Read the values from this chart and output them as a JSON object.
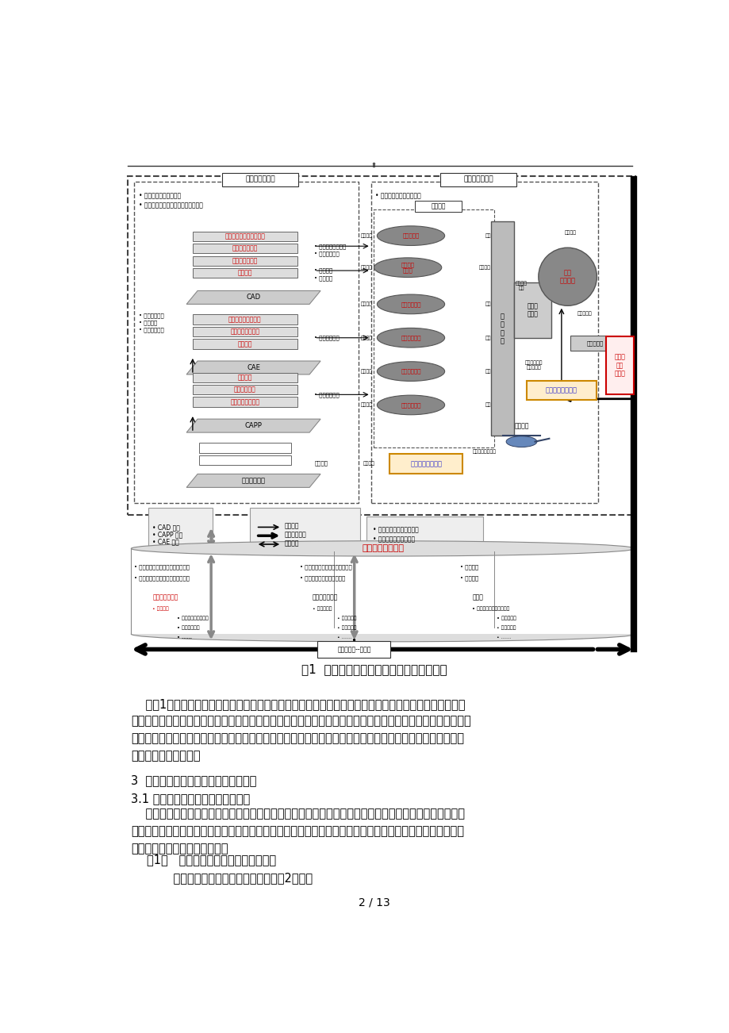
{
  "page_width": 9.2,
  "page_height": 13.02,
  "background_color": "#ffffff",
  "diagram_title": "图1  飞机复合材料构件数字化生产线总方案",
  "para1_lines": [
    "    从图1中可以看出，构建复合材料构件数字化生产线，除实现两大环节的数字化外，还必须保证各环节之",
    "间数据流畅通。基于数字化生产线总方案，围绕复合材料构件数字化设计、数字化工艺设计、数字化工装设计、",
    "数字化制造、数字化检测、并行工作管理、工作流程管理和质量控制等开展研究，并将精益制造理论和思想融",
    "合到整个生产体系中。"
  ],
  "section3_title": "3  复合材料构件数字化生产线技术研究",
  "section31_title": "3.1 复合材料构件数字化生产线体系",
  "para2_lines": [
    "    飞机复合材料构件数字化生产线体系研究主要围绕复合材料构件数字化产品设计、数字化工艺设计、数字",
    "化工装设计、数字化制造、数字化检测、并行工作管理、工作流程管理、质量控制等开展，并将精益制造理论",
    "和思想融合到整个生产体系中。"
  ],
  "item1_title": "（1）   复合材料构件数字化生产线构成",
  "item1_sub": "    复合材料构件生产线平面布置图如图2所示：",
  "page_num": "2 / 13"
}
